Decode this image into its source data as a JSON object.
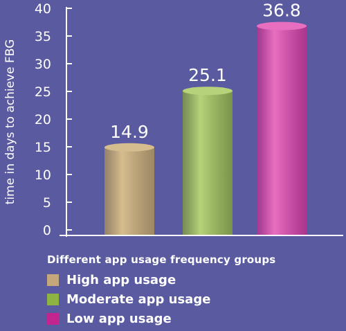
{
  "chart_data": {
    "type": "bar",
    "title": "",
    "xlabel": "Different app usage frequency groups",
    "ylabel": "time in days to achieve FBG",
    "ylim": [
      0,
      40
    ],
    "yticks": [
      0,
      5,
      10,
      15,
      20,
      25,
      30,
      35,
      40
    ],
    "categories": [
      "High app usage",
      "Moderate app usage",
      "Low app usage"
    ],
    "values": [
      14.9,
      25.1,
      36.8
    ],
    "data_labels": [
      "14.9",
      "25.1",
      "36.8"
    ],
    "bar_style": "cylinder",
    "grid": false,
    "legend_position": "bottom-left",
    "colors": {
      "background": "#5a5aa0",
      "bars": [
        "#a88f5a",
        "#7f9e3c",
        "#b72f8a"
      ],
      "bar_tops": [
        "#d6bd8e",
        "#b6d27a",
        "#e86fc0"
      ],
      "legend_swatches": [
        "#c4a77b",
        "#8db443",
        "#c2268e"
      ]
    }
  }
}
